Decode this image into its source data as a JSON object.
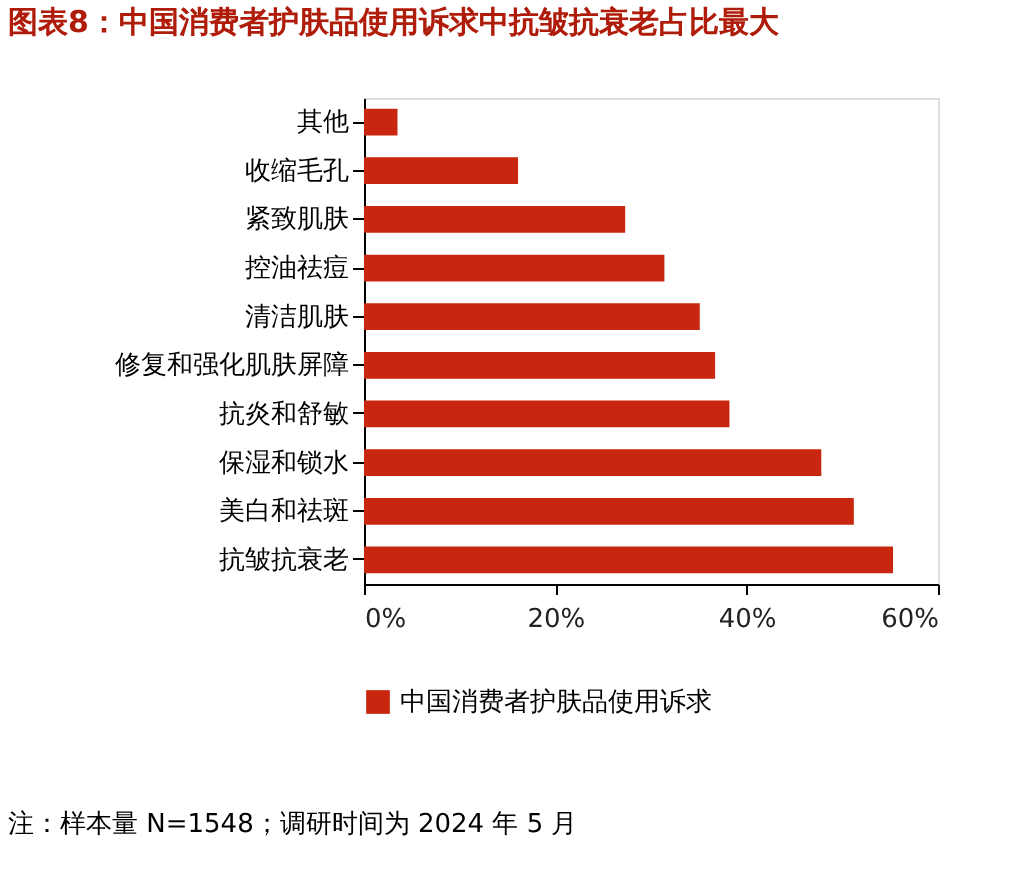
{
  "chart_data": {
    "type": "bar",
    "orientation": "horizontal",
    "title": "图表8：中国消费者护肤品使用诉求中抗皱抗衰老占比最大",
    "categories": [
      "其他",
      "收缩毛孔",
      "紧致肌肤",
      "控油祛痘",
      "清洁肌肤",
      "修复和强化肌肤屏障",
      "抗炎和舒敏",
      "保湿和锁水",
      "美白和祛斑",
      "抗皱抗衰老"
    ],
    "series": [
      {
        "name": "中国消费者护肤品使用诉求",
        "color": "#c8260e",
        "values": [
          3.5,
          16.1,
          27.3,
          31.4,
          35.1,
          36.7,
          38.2,
          47.8,
          51.2,
          55.3
        ]
      }
    ],
    "xlim": [
      0,
      60
    ],
    "xticks": [
      {
        "value": 0,
        "label": "0%"
      },
      {
        "value": 20,
        "label": "20%"
      },
      {
        "value": 40,
        "label": "40%"
      },
      {
        "value": 60,
        "label": "60%"
      }
    ],
    "grid": false,
    "legend": "bottom",
    "annotations": [
      "注：样本量 N=1548；调研时间为 2024 年 5 月"
    ]
  }
}
